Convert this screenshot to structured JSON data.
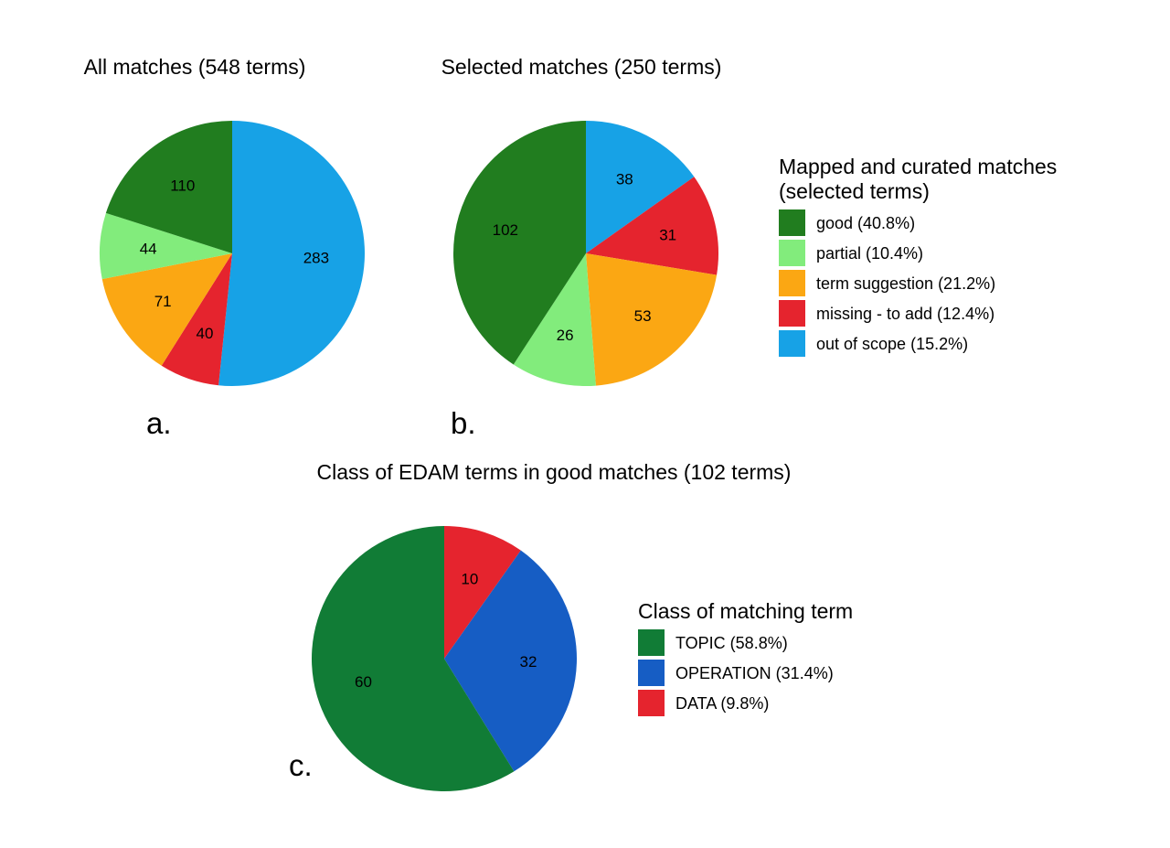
{
  "chart_data": [
    {
      "type": "pie",
      "panel_label": "a.",
      "title": "All matches (548 terms)",
      "series": [
        {
          "name": "out of scope",
          "value": 283,
          "color": "#17a2e6"
        },
        {
          "name": "missing - to add",
          "value": 40,
          "color": "#e5242e"
        },
        {
          "name": "term suggestion",
          "value": 71,
          "color": "#fba713"
        },
        {
          "name": "partial",
          "value": 44,
          "color": "#82ec7c"
        },
        {
          "name": "good",
          "value": 110,
          "color": "#217d1f"
        }
      ]
    },
    {
      "type": "pie",
      "panel_label": "b.",
      "title": "Selected matches (250 terms)",
      "series": [
        {
          "name": "out of scope",
          "value": 38,
          "color": "#17a2e6"
        },
        {
          "name": "missing - to add",
          "value": 31,
          "color": "#e5242e"
        },
        {
          "name": "term suggestion",
          "value": 53,
          "color": "#fba713"
        },
        {
          "name": "partial",
          "value": 26,
          "color": "#82ec7c"
        },
        {
          "name": "good",
          "value": 102,
          "color": "#217d1f"
        }
      ],
      "legend": {
        "title_lines": [
          "Mapped and curated matches",
          "(selected terms)"
        ],
        "items": [
          {
            "label": "good (40.8%)",
            "color": "#217d1f"
          },
          {
            "label": "partial (10.4%)",
            "color": "#82ec7c"
          },
          {
            "label": "term suggestion (21.2%)",
            "color": "#fba713"
          },
          {
            "label": "missing - to add (12.4%)",
            "color": "#e5242e"
          },
          {
            "label": "out of scope (15.2%)",
            "color": "#17a2e6"
          }
        ]
      }
    },
    {
      "type": "pie",
      "panel_label": "c.",
      "title": "Class of EDAM terms in good matches (102 terms)",
      "series": [
        {
          "name": "DATA",
          "value": 10,
          "color": "#e5242e"
        },
        {
          "name": "OPERATION",
          "value": 32,
          "color": "#165dc4"
        },
        {
          "name": "TOPIC",
          "value": 60,
          "color": "#117c36"
        }
      ],
      "legend": {
        "title_lines": [
          "Class of matching term"
        ],
        "items": [
          {
            "label": "TOPIC (58.8%)",
            "color": "#117c36"
          },
          {
            "label": "OPERATION (31.4%)",
            "color": "#165dc4"
          },
          {
            "label": "DATA (9.8%)",
            "color": "#e5242e"
          }
        ]
      }
    }
  ]
}
